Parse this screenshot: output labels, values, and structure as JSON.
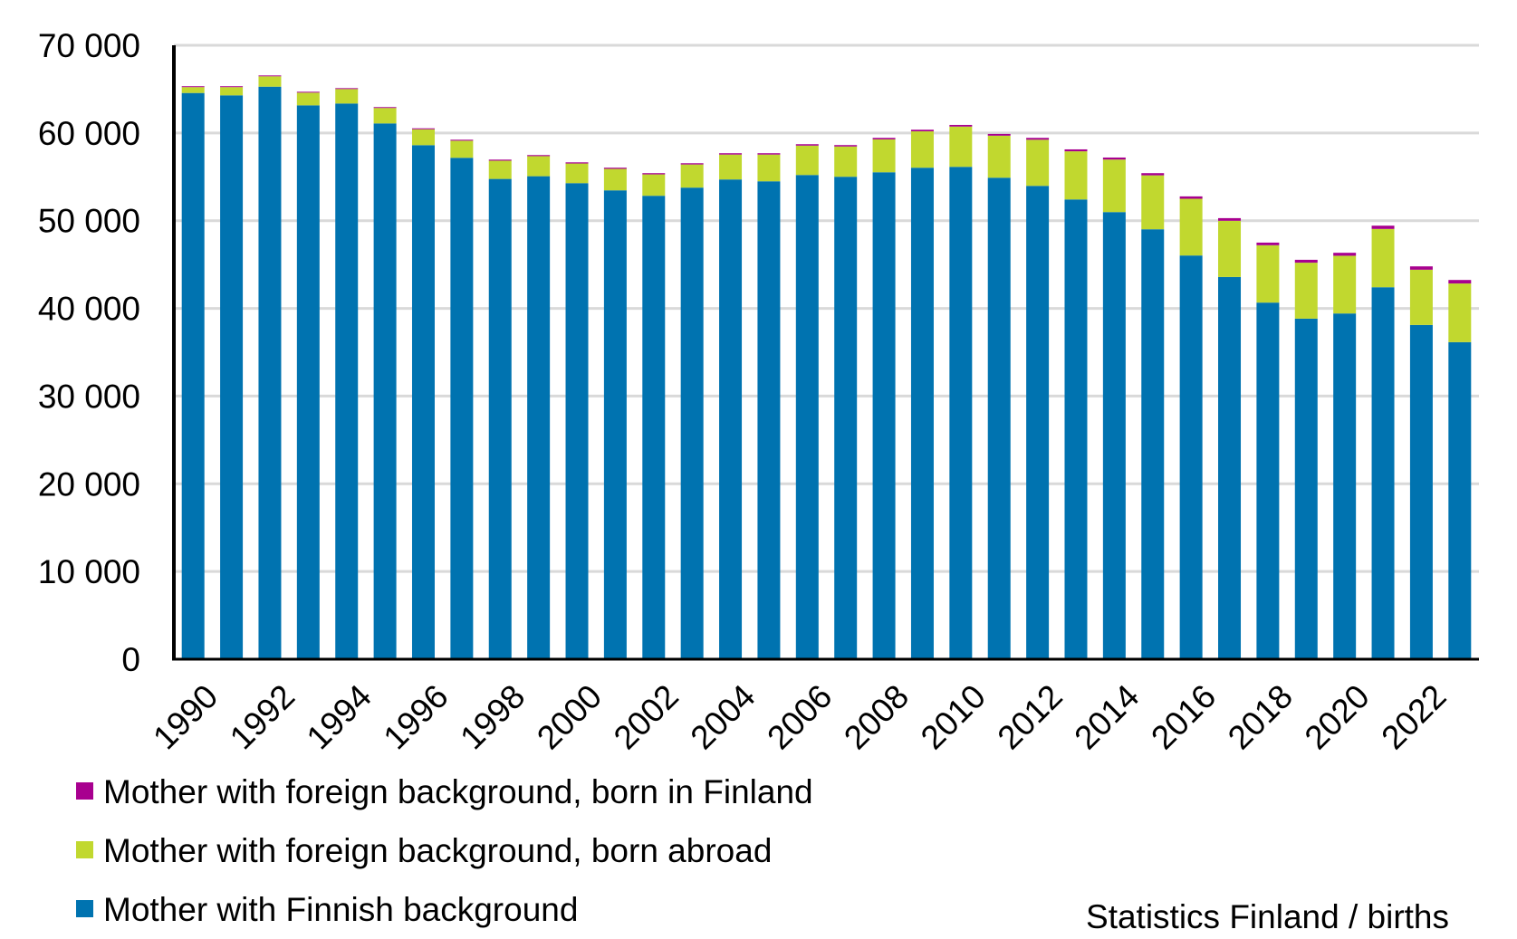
{
  "chart_data": {
    "type": "bar",
    "stacked": true,
    "title": "",
    "xlabel": "",
    "ylabel": "",
    "ylim": [
      0,
      70000
    ],
    "yticks": [
      "0",
      "10 000",
      "20 000",
      "30 000",
      "40 000",
      "50 000",
      "60 000",
      "70 000"
    ],
    "ytick_values": [
      0,
      10000,
      20000,
      30000,
      40000,
      50000,
      60000,
      70000
    ],
    "grid": true,
    "legend_position": "bottom-left",
    "categories": [
      "1990",
      "1991",
      "1992",
      "1993",
      "1994",
      "1995",
      "1996",
      "1997",
      "1998",
      "1999",
      "2000",
      "2001",
      "2002",
      "2003",
      "2004",
      "2005",
      "2006",
      "2007",
      "2008",
      "2009",
      "2010",
      "2011",
      "2012",
      "2013",
      "2014",
      "2015",
      "2016",
      "2017",
      "2018",
      "2019",
      "2020",
      "2021",
      "2022",
      "2023"
    ],
    "x_tick_labels_shown": [
      "1990",
      "1992",
      "1994",
      "1996",
      "1998",
      "2000",
      "2002",
      "2004",
      "2006",
      "2008",
      "2010",
      "2012",
      "2014",
      "2016",
      "2018",
      "2020",
      "2022"
    ],
    "series": [
      {
        "name": "Mother with Finnish background",
        "color": "#0073B0",
        "values": [
          64560,
          64290,
          65280,
          63150,
          63360,
          61090,
          58610,
          57170,
          54760,
          55070,
          54280,
          53460,
          52840,
          53770,
          54700,
          54490,
          55210,
          55010,
          55520,
          56040,
          56140,
          54900,
          53970,
          52420,
          50980,
          49020,
          46030,
          43580,
          40660,
          38830,
          39420,
          42410,
          38110,
          36150
        ]
      },
      {
        "name": "Mother with foreign background, born abroad",
        "color": "#C1D82F",
        "values": [
          670,
          940,
          1180,
          1450,
          1650,
          1760,
          1810,
          1950,
          2080,
          2290,
          2240,
          2450,
          2440,
          2640,
          2840,
          3050,
          3350,
          3450,
          3750,
          4150,
          4590,
          4790,
          5260,
          5490,
          5990,
          6150,
          6470,
          6410,
          6540,
          6380,
          6580,
          6650,
          6300,
          6690
        ]
      },
      {
        "name": "Mother with foreign background, born in Finland",
        "color": "#A8008F",
        "values": [
          100,
          100,
          100,
          100,
          100,
          100,
          110,
          110,
          120,
          120,
          130,
          130,
          140,
          140,
          150,
          150,
          160,
          160,
          170,
          180,
          190,
          200,
          210,
          220,
          230,
          250,
          270,
          300,
          300,
          330,
          340,
          370,
          380,
          400
        ]
      }
    ],
    "legend_order": [
      2,
      1,
      0
    ],
    "source": "Statistics Finland / births"
  }
}
